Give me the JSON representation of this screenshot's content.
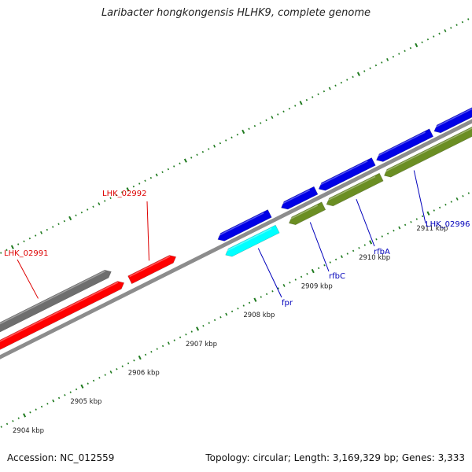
{
  "title": "Laribacter hongkongensis HLHK9, complete genome",
  "footer": {
    "accession": "Accession: NC_012559",
    "summary": "Topology: circular; Length: 3,169,329 bp; Genes: 3,333"
  },
  "colors": {
    "backbone": "#8c8c8c",
    "ticks": "#1e7a1e",
    "forward_cds": "#ff0000",
    "forward_gray": "#6e6e6e",
    "reverse_blue": "#0000e6",
    "reverse_cyan": "#00ffff",
    "reverse_olive": "#6b8e23",
    "label_red": "#dd0000",
    "label_blue": "#0000bb"
  },
  "axis": {
    "unit": "kbp",
    "ticks": [
      2904,
      2905,
      2906,
      2907,
      2908,
      2909,
      2910,
      2911
    ],
    "tick_labels": [
      "2904 kbp",
      "2905 kbp",
      "2906 kbp",
      "2907 kbp",
      "2908 kbp",
      "2909 kbp",
      "2910 kbp",
      "2911 kbp"
    ]
  },
  "features": [
    {
      "id": "LHK_02991",
      "strand": "+",
      "track": "gray",
      "start": 2903.6,
      "end": 2906.2,
      "color": "gray"
    },
    {
      "id": "f_red_big",
      "strand": "+",
      "track": "red",
      "start": 2903.6,
      "end": 2906.3,
      "color": "red"
    },
    {
      "id": "LHK_02992",
      "strand": "+",
      "track": "red",
      "start": 2906.4,
      "end": 2907.2,
      "color": "red"
    },
    {
      "id": "fpr",
      "strand": "-",
      "track": "cyan",
      "start": 2907.9,
      "end": 2908.8,
      "color": "cyan"
    },
    {
      "id": "f_blue_1",
      "strand": "-",
      "track": "blue",
      "start": 2907.9,
      "end": 2908.8,
      "color": "blue"
    },
    {
      "id": "rfbC",
      "strand": "-",
      "track": "blue",
      "start": 2909.0,
      "end": 2909.6,
      "color": "blue"
    },
    {
      "id": "f_olive_1",
      "strand": "-",
      "track": "olive",
      "start": 2909.0,
      "end": 2909.6,
      "color": "olive"
    },
    {
      "id": "rfbA",
      "strand": "-",
      "track": "blue",
      "start": 2909.65,
      "end": 2910.6,
      "color": "blue"
    },
    {
      "id": "f_olive_2",
      "strand": "-",
      "track": "olive",
      "start": 2909.65,
      "end": 2910.6,
      "color": "olive"
    },
    {
      "id": "LHK_02996",
      "strand": "-",
      "track": "blue",
      "start": 2910.65,
      "end": 2911.6,
      "color": "blue"
    },
    {
      "id": "f_olive_3",
      "strand": "-",
      "track": "olive",
      "start": 2910.65,
      "end": 2913.0,
      "color": "olive"
    },
    {
      "id": "f_blue_end",
      "strand": "-",
      "track": "blue",
      "start": 2911.65,
      "end": 2913.0,
      "color": "blue"
    }
  ],
  "labels": [
    {
      "text": "LHK_02991",
      "color": "red",
      "feature_pos": 2905.0,
      "track": "gray"
    },
    {
      "text": "LHK_02992",
      "color": "red",
      "feature_pos": 2906.8,
      "track": "red"
    },
    {
      "text": "fpr",
      "color": "blue",
      "feature_pos": 2908.4,
      "track": "cyan"
    },
    {
      "text": "rfbC",
      "color": "blue",
      "feature_pos": 2909.3,
      "track": "olive"
    },
    {
      "text": "rfbA",
      "color": "blue",
      "feature_pos": 2910.1,
      "track": "olive"
    },
    {
      "text": "LHK_02996",
      "color": "blue",
      "feature_pos": 2911.1,
      "track": "olive"
    }
  ]
}
